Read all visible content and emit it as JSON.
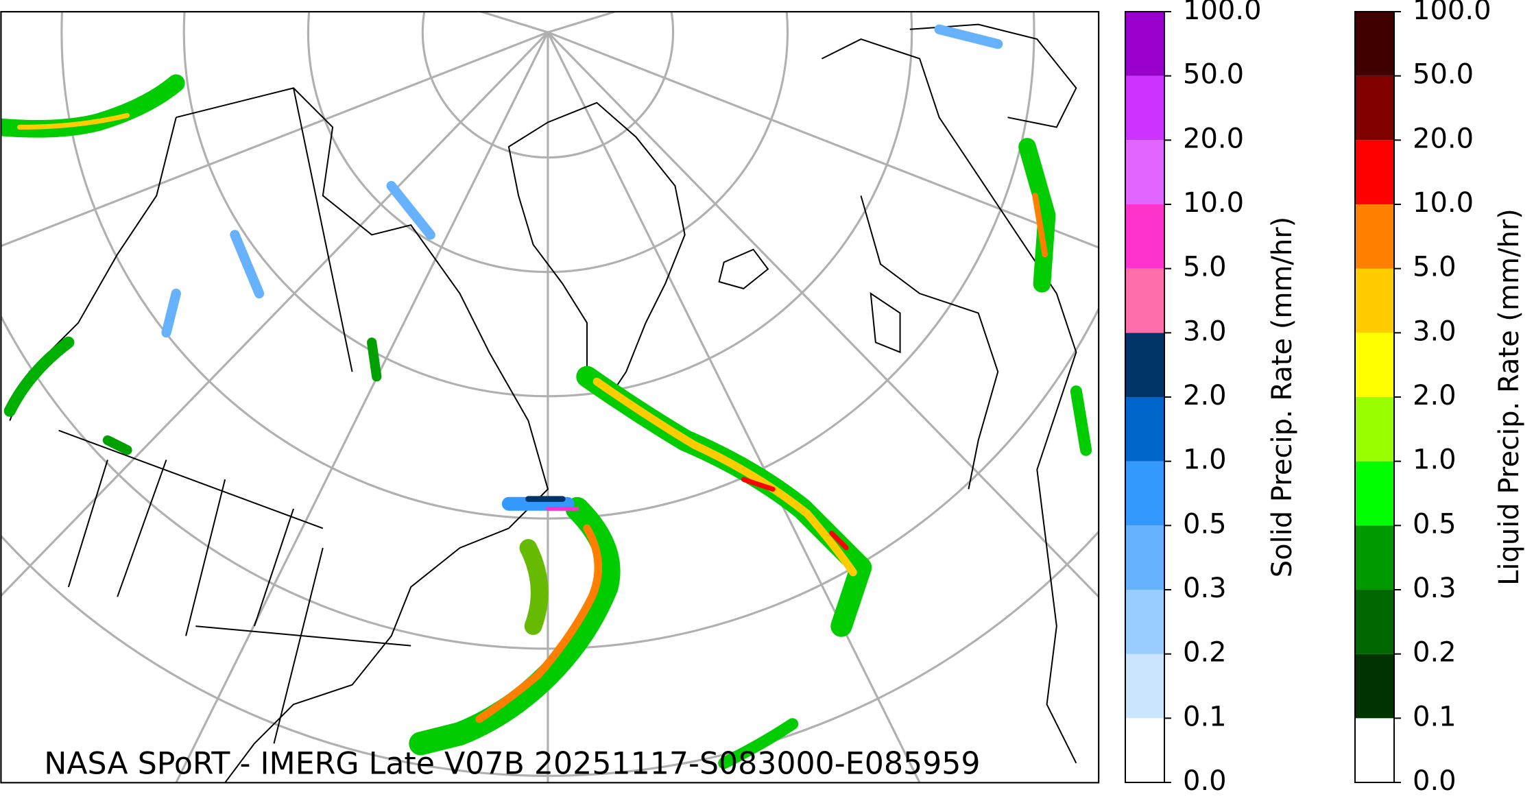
{
  "map": {
    "caption": "NASA SPoRT - IMERG Late V07B 20251117-S083000-E085959"
  },
  "colorbars": [
    {
      "label": "Solid Precip. Rate (mm/hr)",
      "ticks": [
        {
          "value": 0,
          "label": "0.0"
        },
        {
          "value": 0.1,
          "label": "0.1"
        },
        {
          "value": 0.2,
          "label": "0.2"
        },
        {
          "value": 0.3,
          "label": "0.3"
        },
        {
          "value": 0.5,
          "label": "0.5"
        },
        {
          "value": 1,
          "label": "1.0"
        },
        {
          "value": 2,
          "label": "2.0"
        },
        {
          "value": 3,
          "label": "3.0"
        },
        {
          "value": 5,
          "label": "5.0"
        },
        {
          "value": 10,
          "label": "10.0"
        },
        {
          "value": 20,
          "label": "20.0"
        },
        {
          "value": 50,
          "label": "50.0"
        },
        {
          "value": 100,
          "label": "100.0"
        }
      ],
      "colors": [
        "#ffffff",
        "#cce5ff",
        "#99ccff",
        "#66b2ff",
        "#3399ff",
        "#0066cc",
        "#003366",
        "#ff6ea8",
        "#ff33cc",
        "#e066ff",
        "#cc33ff",
        "#9900cc"
      ]
    },
    {
      "label": "Liquid Precip. Rate (mm/hr)",
      "ticks": [
        {
          "value": 0,
          "label": "0.0"
        },
        {
          "value": 0.1,
          "label": "0.1"
        },
        {
          "value": 0.2,
          "label": "0.2"
        },
        {
          "value": 0.3,
          "label": "0.3"
        },
        {
          "value": 0.5,
          "label": "0.5"
        },
        {
          "value": 1,
          "label": "1.0"
        },
        {
          "value": 2,
          "label": "2.0"
        },
        {
          "value": 3,
          "label": "3.0"
        },
        {
          "value": 5,
          "label": "5.0"
        },
        {
          "value": 10,
          "label": "10.0"
        },
        {
          "value": 20,
          "label": "20.0"
        },
        {
          "value": 50,
          "label": "50.0"
        },
        {
          "value": 100,
          "label": "100.0"
        }
      ],
      "colors": [
        "#ffffff",
        "#003300",
        "#006600",
        "#009900",
        "#00ff00",
        "#99ff00",
        "#ffff00",
        "#ffcc00",
        "#ff8000",
        "#ff0000",
        "#800000",
        "#400000"
      ]
    }
  ]
}
